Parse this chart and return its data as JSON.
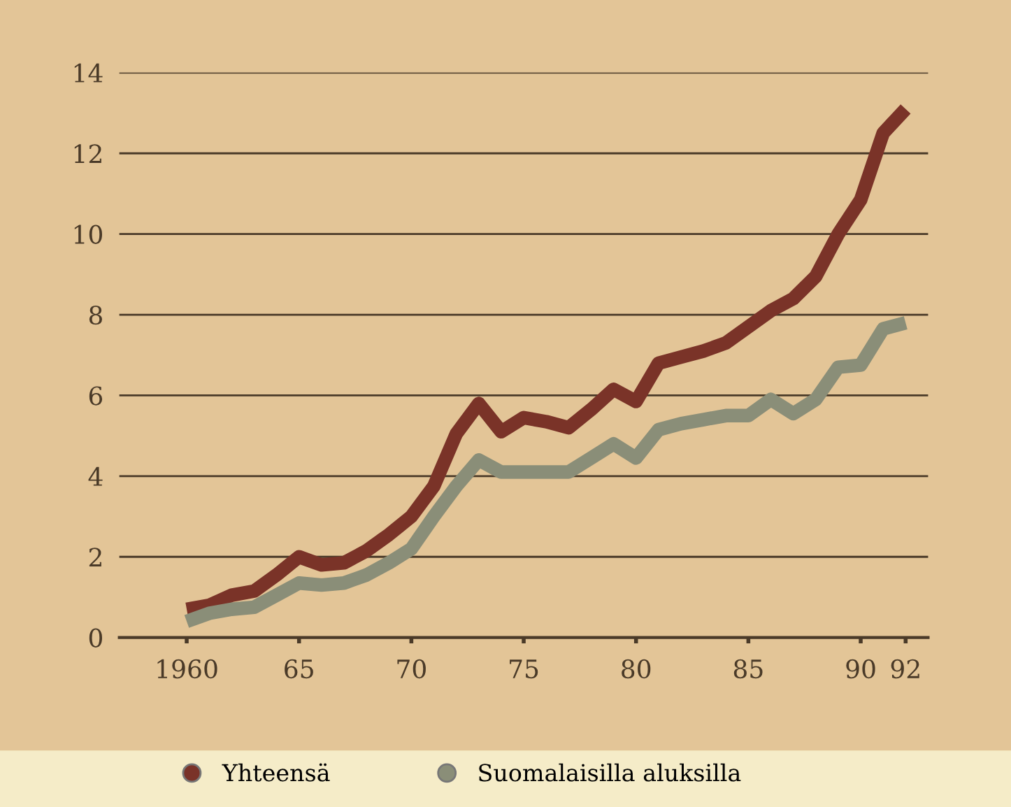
{
  "chart_data": {
    "type": "line",
    "x": [
      1960,
      1961,
      1962,
      1963,
      1964,
      1965,
      1966,
      1967,
      1968,
      1969,
      1970,
      1971,
      1972,
      1973,
      1974,
      1975,
      1976,
      1977,
      1978,
      1979,
      1980,
      1981,
      1982,
      1983,
      1984,
      1985,
      1986,
      1987,
      1988,
      1989,
      1990,
      1991,
      1992
    ],
    "series": [
      {
        "name": "Yhteensä",
        "color": "#7a3328",
        "values": [
          0.7,
          0.8,
          1.05,
          1.15,
          1.55,
          2.0,
          1.8,
          1.85,
          2.15,
          2.55,
          3.0,
          3.75,
          5.05,
          5.8,
          5.1,
          5.45,
          5.35,
          5.2,
          5.65,
          6.15,
          5.85,
          6.8,
          6.95,
          7.1,
          7.3,
          7.7,
          8.1,
          8.4,
          8.95,
          10.0,
          10.85,
          12.5,
          13.1
        ]
      },
      {
        "name": "Suomalaisilla aluksilla",
        "color": "#8a8e78",
        "values": [
          0.4,
          0.6,
          0.7,
          0.75,
          1.05,
          1.35,
          1.3,
          1.35,
          1.55,
          1.85,
          2.2,
          3.0,
          3.75,
          4.4,
          4.1,
          4.1,
          4.1,
          4.1,
          4.45,
          4.8,
          4.45,
          5.15,
          5.3,
          5.4,
          5.5,
          5.5,
          5.9,
          5.55,
          5.9,
          6.7,
          6.75,
          7.65,
          7.8
        ]
      }
    ],
    "xlim": [
      1957,
      1993
    ],
    "xticks": [
      {
        "value": 1960,
        "label": "1960"
      },
      {
        "value": 1965,
        "label": "65"
      },
      {
        "value": 1970,
        "label": "70"
      },
      {
        "value": 1975,
        "label": "75"
      },
      {
        "value": 1980,
        "label": "80"
      },
      {
        "value": 1985,
        "label": "85"
      },
      {
        "value": 1990,
        "label": "90"
      },
      {
        "value": 1992,
        "label": "92"
      }
    ],
    "ylim": [
      0,
      14
    ],
    "yticks": [
      0,
      2,
      4,
      6,
      8,
      10,
      12,
      14
    ],
    "grid": "y",
    "legend": "bottom",
    "marker": "none",
    "line_style": "solid"
  }
}
